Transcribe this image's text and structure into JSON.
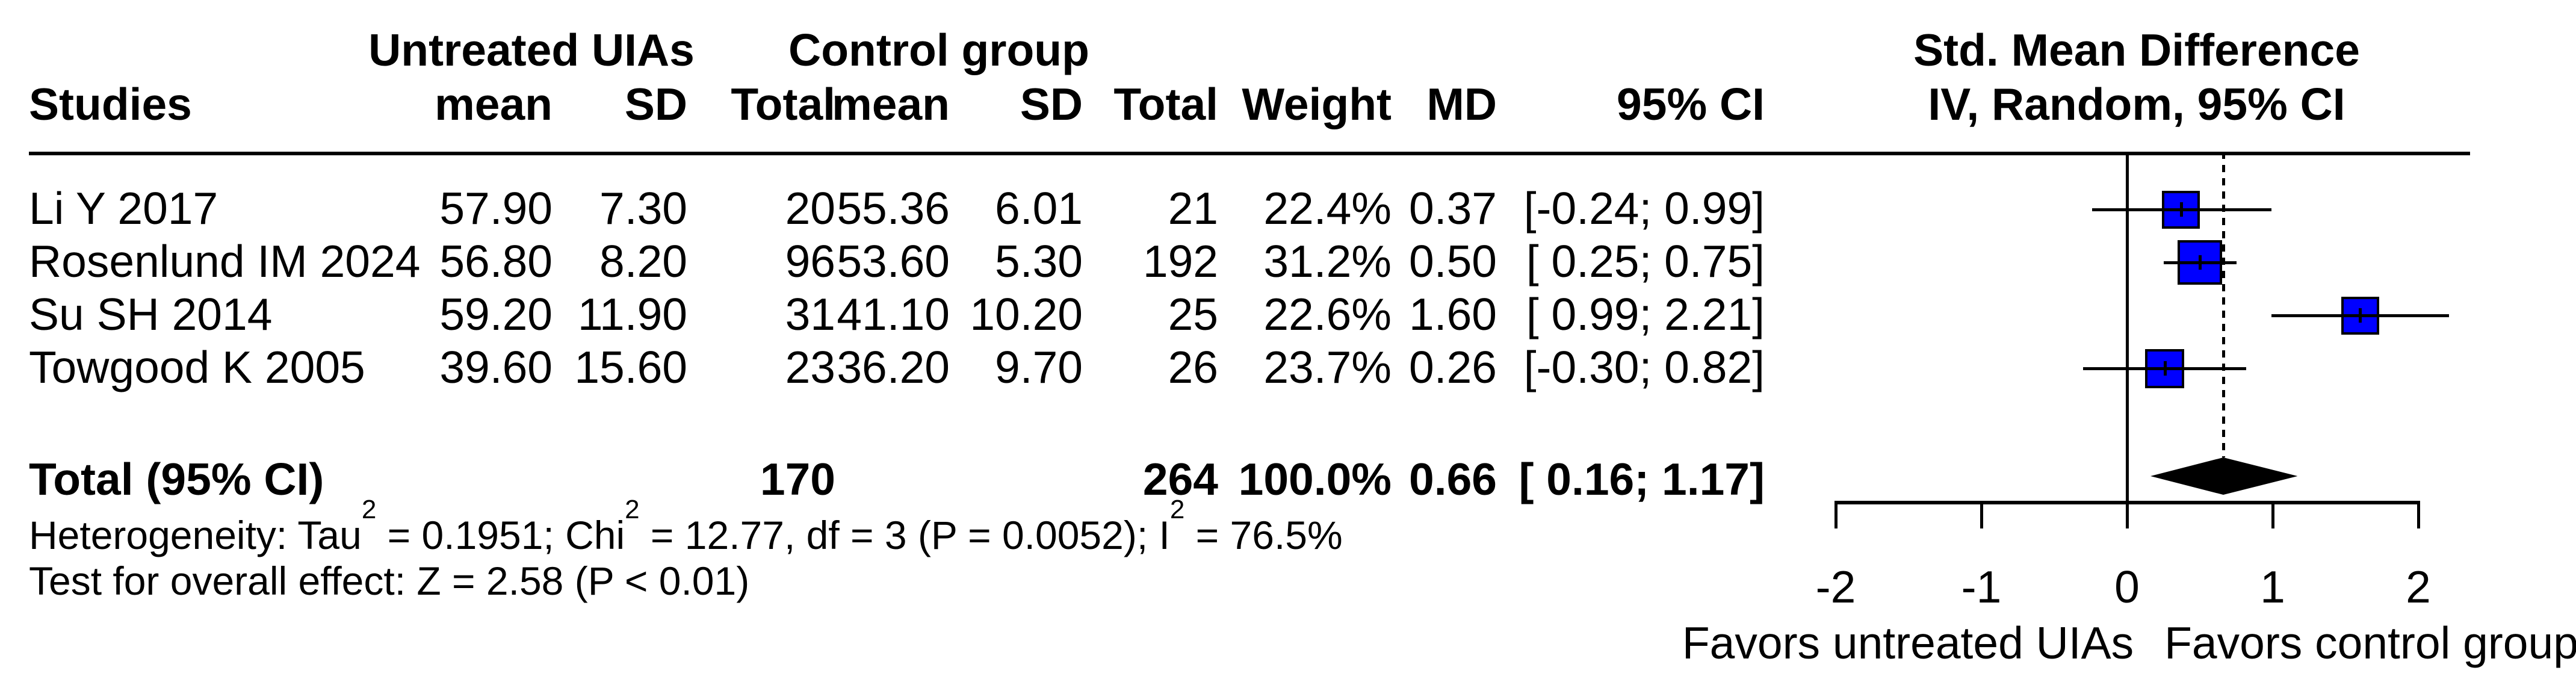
{
  "header": {
    "studies_label": "Studies",
    "group_untreated": "Untreated UIAs",
    "group_control": "Control group",
    "cols": [
      "mean",
      "SD",
      "Total",
      "mean",
      "SD",
      "Total",
      "Weight",
      "MD",
      "95% CI"
    ],
    "smd_title": "Std. Mean Difference",
    "smd_subtitle": "IV, Random, 95% CI"
  },
  "chart_data": {
    "type": "scatter",
    "subtype": "forest-plot",
    "title": "Std. Mean Difference",
    "model_label": "IV, Random, 95% CI",
    "x_ticks": [
      -2,
      -1,
      0,
      1,
      2
    ],
    "xlim": [
      -2,
      2
    ],
    "null_line_x": 0,
    "overall_dashed_line_x": 0.66,
    "square_color": "#0000FF",
    "diamond_color": "#000000",
    "studies": [
      {
        "label": "Li Y 2017",
        "t_mean": "57.90",
        "t_sd": "7.30",
        "t_n": "20",
        "c_mean": "55.36",
        "c_sd": "6.01",
        "c_n": "21",
        "weight": "22.4%",
        "weight_pct": 22.4,
        "md": 0.37,
        "md_text": "0.37",
        "ci_lo": -0.24,
        "ci_hi": 0.99,
        "ci_text": "[-0.24; 0.99]"
      },
      {
        "label": "Rosenlund IM 2024",
        "t_mean": "56.80",
        "t_sd": "8.20",
        "t_n": "96",
        "c_mean": "53.60",
        "c_sd": "5.30",
        "c_n": "192",
        "weight": "31.2%",
        "weight_pct": 31.2,
        "md": 0.5,
        "md_text": "0.50",
        "ci_lo": 0.25,
        "ci_hi": 0.75,
        "ci_text": "[ 0.25; 0.75]"
      },
      {
        "label": "Su SH 2014",
        "t_mean": "59.20",
        "t_sd": "11.90",
        "t_n": "31",
        "c_mean": "41.10",
        "c_sd": "10.20",
        "c_n": "25",
        "weight": "22.6%",
        "weight_pct": 22.6,
        "md": 1.6,
        "md_text": "1.60",
        "ci_lo": 0.99,
        "ci_hi": 2.21,
        "ci_text": "[ 0.99; 2.21]"
      },
      {
        "label": "Towgood K 2005",
        "t_mean": "39.60",
        "t_sd": "15.60",
        "t_n": "23",
        "c_mean": "36.20",
        "c_sd": "9.70",
        "c_n": "26",
        "weight": "23.7%",
        "weight_pct": 23.7,
        "md": 0.26,
        "md_text": "0.26",
        "ci_lo": -0.3,
        "ci_hi": 0.82,
        "ci_text": "[-0.30; 0.82]"
      }
    ],
    "total": {
      "label": "Total (95% CI)",
      "t_n": "170",
      "c_n": "264",
      "weight": "100.0%",
      "md": 0.66,
      "md_text": "0.66",
      "ci_lo": 0.16,
      "ci_hi": 1.17,
      "ci_text": "[ 0.16; 1.17]"
    },
    "favors_left": "Favors untreated UIAs",
    "favors_right": "Favors control group"
  },
  "footer": {
    "heterogeneity_parts": [
      {
        "text": "Heterogeneity: Tau"
      },
      {
        "sup": "2"
      },
      {
        "text": " = 0.1951; Chi"
      },
      {
        "sup": "2"
      },
      {
        "text": " = 12.77, df = 3 (P = 0.0052); I"
      },
      {
        "sup": "2"
      },
      {
        "text": " = 76.5%"
      }
    ],
    "overall_effect": "Test for overall effect: Z = 2.58 (P < 0.01)"
  }
}
